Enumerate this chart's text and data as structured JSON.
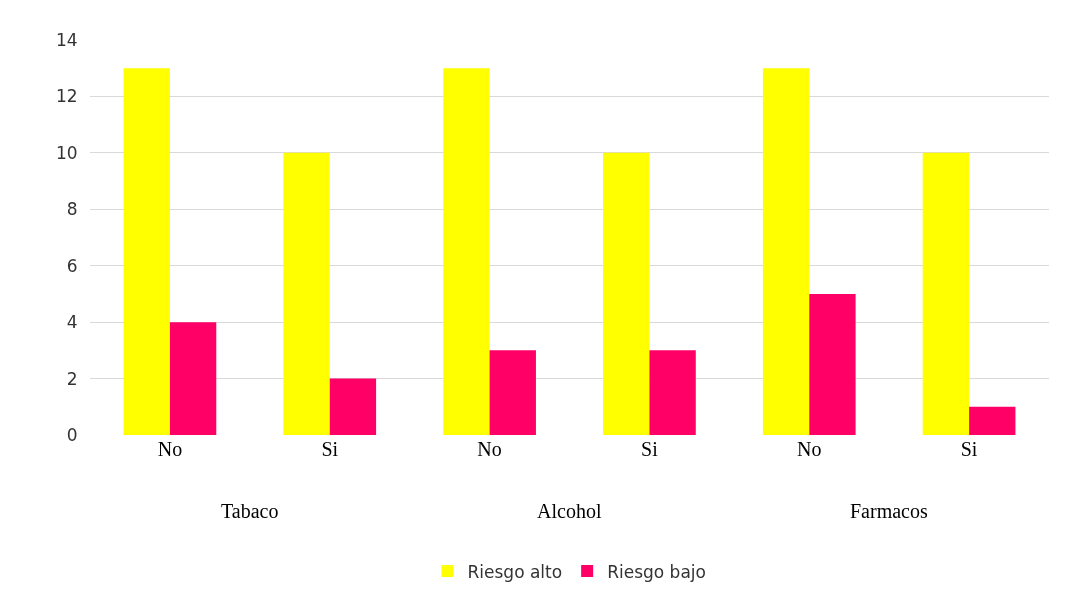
{
  "chart_data": {
    "type": "bar",
    "categories": [
      "No",
      "Si",
      "No",
      "Si",
      "No",
      "Si"
    ],
    "series": [
      {
        "name": "Riesgo alto",
        "color": "#ffff00",
        "values": [
          13,
          10,
          13,
          10,
          13,
          10
        ]
      },
      {
        "name": "Riesgo bajo",
        "color": "#ff0066",
        "values": [
          4,
          2,
          3,
          3,
          5,
          1
        ]
      }
    ],
    "annotations": [
      "Tabaco",
      "Alcohol",
      "Farmacos"
    ],
    "ylim": [
      0,
      14
    ],
    "yticks": [
      0,
      2,
      4,
      6,
      8,
      10,
      12,
      14
    ],
    "grid": "y",
    "legend": "bottom"
  }
}
